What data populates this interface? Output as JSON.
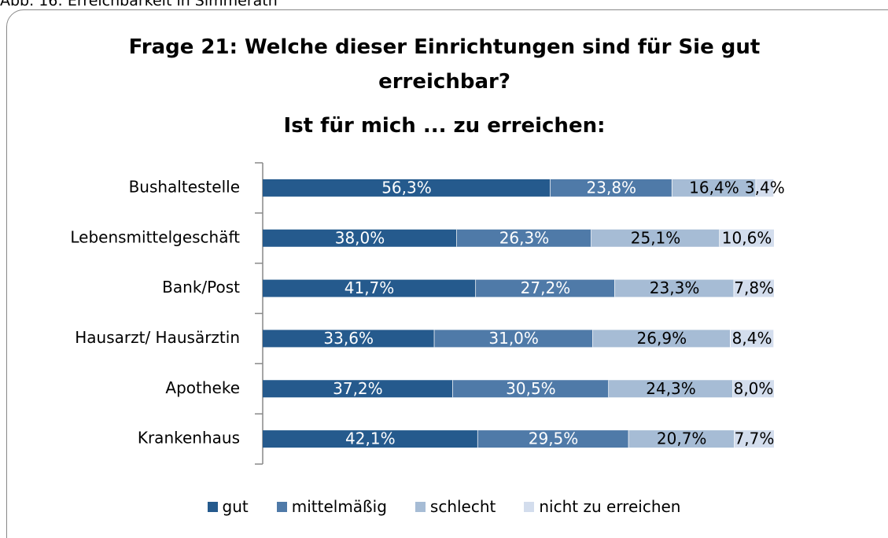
{
  "caption": "Abb. 16: Erreichbarkeit in Simmerath",
  "chart_data": {
    "type": "stacked_bar_horizontal",
    "title": "Frage 21: Welche dieser Einrichtungen sind für Sie gut erreichbar?",
    "subtitle": "Ist für mich ... zu erreichen:",
    "categories": [
      "Bushaltestelle",
      "Lebensmittelgeschäft",
      "Bank/Post",
      "Hausarzt/ Hausärztin",
      "Apotheke",
      "Krankenhaus"
    ],
    "xlim": [
      0,
      100
    ],
    "legend": "bottom",
    "series": [
      {
        "name": "gut",
        "color": "#255a8d",
        "values": [
          56.3,
          38.0,
          41.7,
          33.6,
          37.2,
          42.1
        ],
        "value_labels": [
          "56,3%",
          "38,0%",
          "41,7%",
          "33,6%",
          "37,2%",
          "42,1%"
        ]
      },
      {
        "name": "mittelmäßig",
        "color": "#4f7aa8",
        "values": [
          23.8,
          26.3,
          27.2,
          31.0,
          30.5,
          29.5
        ],
        "value_labels": [
          "23,8%",
          "26,3%",
          "27,2%",
          "31,0%",
          "30,5%",
          "29,5%"
        ]
      },
      {
        "name": "schlecht",
        "color": "#a6bcd5",
        "values": [
          16.4,
          25.1,
          23.3,
          26.9,
          24.3,
          20.7
        ],
        "value_labels": [
          "16,4%",
          "25,1%",
          "23,3%",
          "26,9%",
          "24,3%",
          "20,7%"
        ]
      },
      {
        "name": "nicht zu erreichen",
        "color": "#d3dded",
        "values": [
          3.4,
          10.6,
          7.8,
          8.4,
          8.0,
          7.7
        ],
        "value_labels": [
          "3,4%",
          "10,6%",
          "7,8%",
          "8,4%",
          "8,0%",
          "7,7%"
        ]
      }
    ]
  }
}
